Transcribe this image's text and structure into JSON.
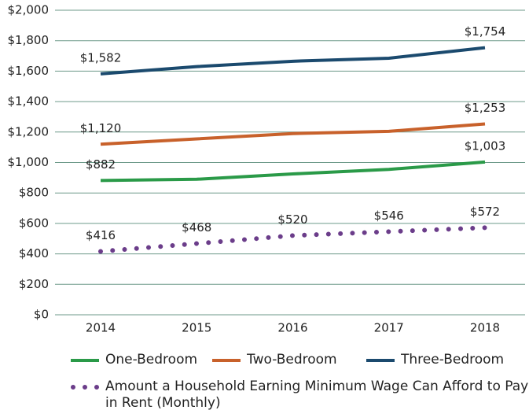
{
  "chart_data": {
    "type": "line",
    "categories": [
      "2014",
      "2015",
      "2016",
      "2017",
      "2018"
    ],
    "series": [
      {
        "name": "One-Bedroom",
        "color": "#2a9a48",
        "style": "solid",
        "values": [
          882,
          890,
          925,
          955,
          1003
        ],
        "value_labels": [
          "$882",
          null,
          null,
          null,
          "$1,003"
        ]
      },
      {
        "name": "Two-Bedroom",
        "color": "#c8612b",
        "style": "solid",
        "values": [
          1120,
          1155,
          1190,
          1205,
          1253
        ],
        "value_labels": [
          "$1,120",
          null,
          null,
          null,
          "$1,253"
        ]
      },
      {
        "name": "Three-Bedroom",
        "color": "#1b4a6e",
        "style": "solid",
        "values": [
          1582,
          1630,
          1665,
          1685,
          1754
        ],
        "value_labels": [
          "$1,582",
          null,
          null,
          null,
          "$1,754"
        ]
      },
      {
        "name": "Amount a Household Earning Minimum Wage Can Afford to Pay in Rent (Monthly)",
        "color": "#6b3d8a",
        "style": "dotted",
        "values": [
          416,
          468,
          520,
          546,
          572
        ],
        "value_labels": [
          "$416",
          "$468",
          "$520",
          "$546",
          "$572"
        ]
      }
    ],
    "ylim": [
      0,
      2000
    ],
    "yticks": [
      {
        "value": 0,
        "label": "$0"
      },
      {
        "value": 200,
        "label": "$200"
      },
      {
        "value": 400,
        "label": "$400"
      },
      {
        "value": 600,
        "label": "$600"
      },
      {
        "value": 800,
        "label": "$800"
      },
      {
        "value": 1000,
        "label": "$1,000"
      },
      {
        "value": 1200,
        "label": "$1,200"
      },
      {
        "value": 1400,
        "label": "$1,400"
      },
      {
        "value": 1600,
        "label": "$1,600"
      },
      {
        "value": 1800,
        "label": "$1,800"
      },
      {
        "value": 2000,
        "label": "$2,000"
      }
    ],
    "grid": true
  }
}
